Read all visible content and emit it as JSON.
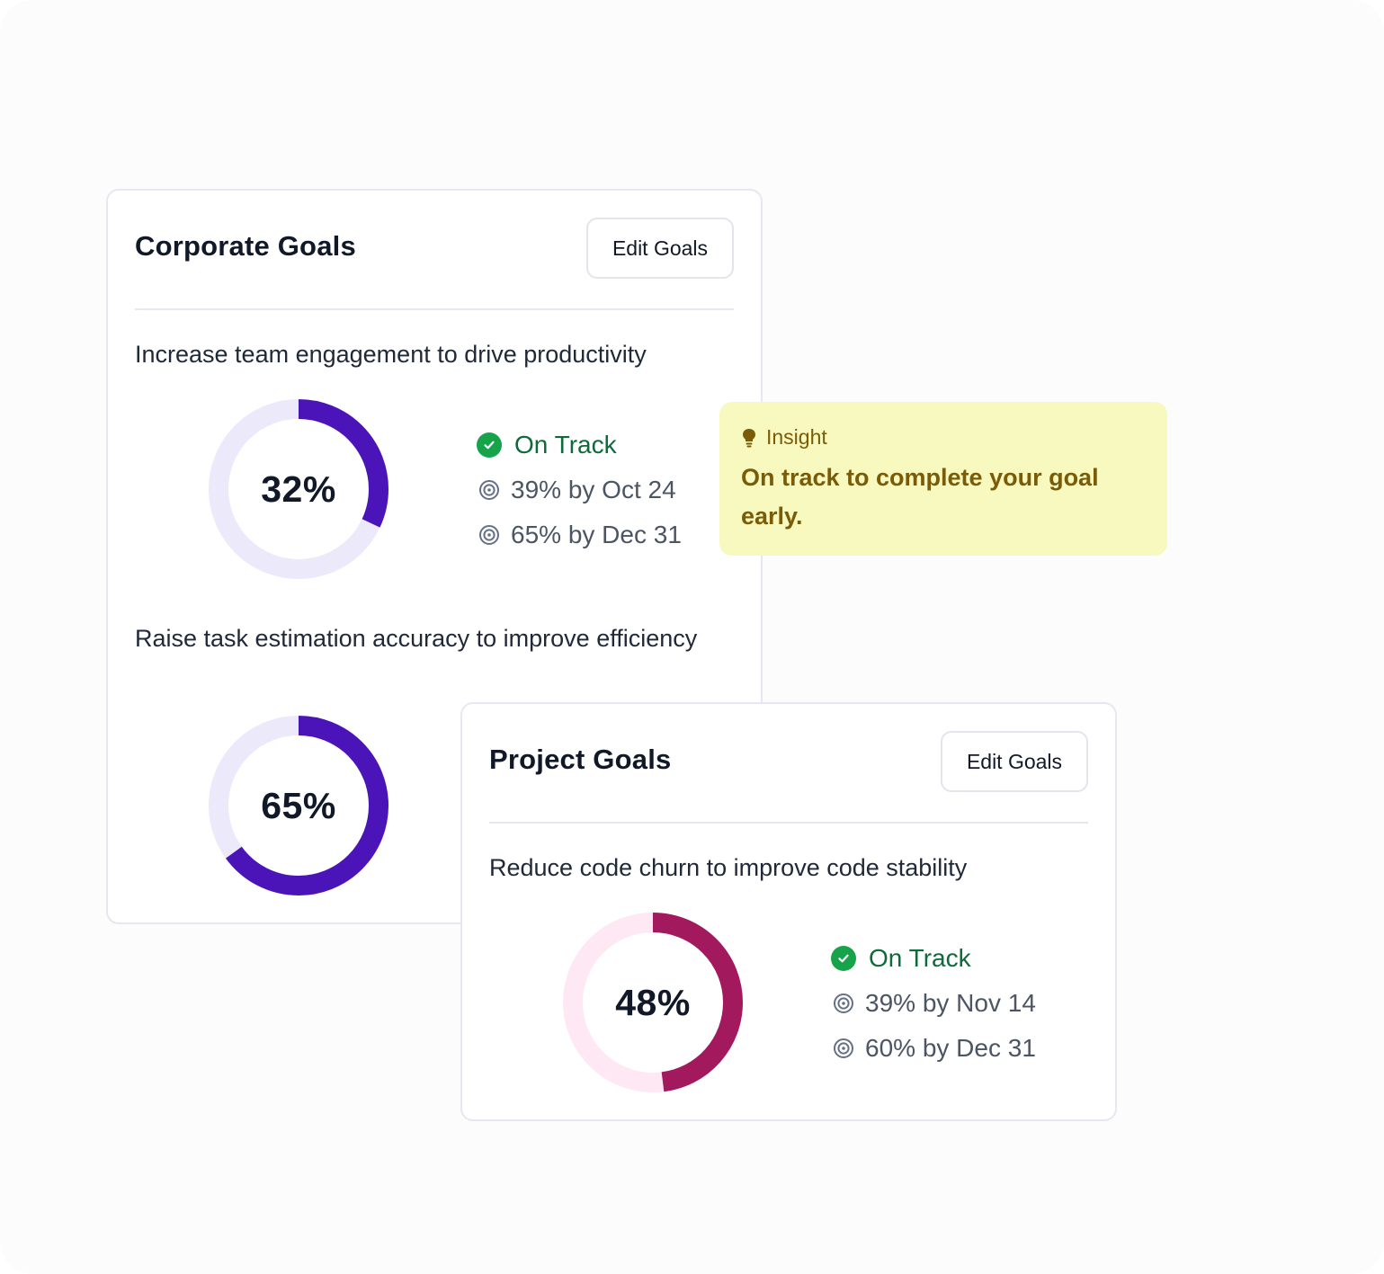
{
  "corporate_goals": {
    "title": "Corporate Goals",
    "edit_label": "Edit Goals",
    "goals": [
      {
        "description": "Increase team engagement to drive productivity",
        "progress_label": "32%",
        "progress": 0.32,
        "status": "On Track",
        "milestones": [
          "39% by Oct 24",
          "65% by Dec 31"
        ]
      },
      {
        "description": "Raise task estimation accuracy to improve efficiency",
        "progress_label": "65%",
        "progress": 0.65
      }
    ]
  },
  "project_goals": {
    "title": "Project Goals",
    "edit_label": "Edit Goals",
    "goals": [
      {
        "description": "Reduce code churn to improve code stability",
        "progress_label": "48%",
        "progress": 0.48,
        "status": "On Track",
        "milestones": [
          "39% by Nov 14",
          "60% by Dec 31"
        ]
      }
    ]
  },
  "insight": {
    "label": "Insight",
    "text": "On track to complete your goal early."
  },
  "colors": {
    "corporate_ring": "#4b14b8",
    "corporate_track": "#ece9fb",
    "project_ring": "#a3195e",
    "project_track": "#fde8f4",
    "status_check": "#16a34a",
    "insight_bg": "#f7f9bf"
  },
  "icons": {
    "status": "check-circle-icon",
    "milestone": "target-icon",
    "insight": "lightbulb-icon"
  }
}
